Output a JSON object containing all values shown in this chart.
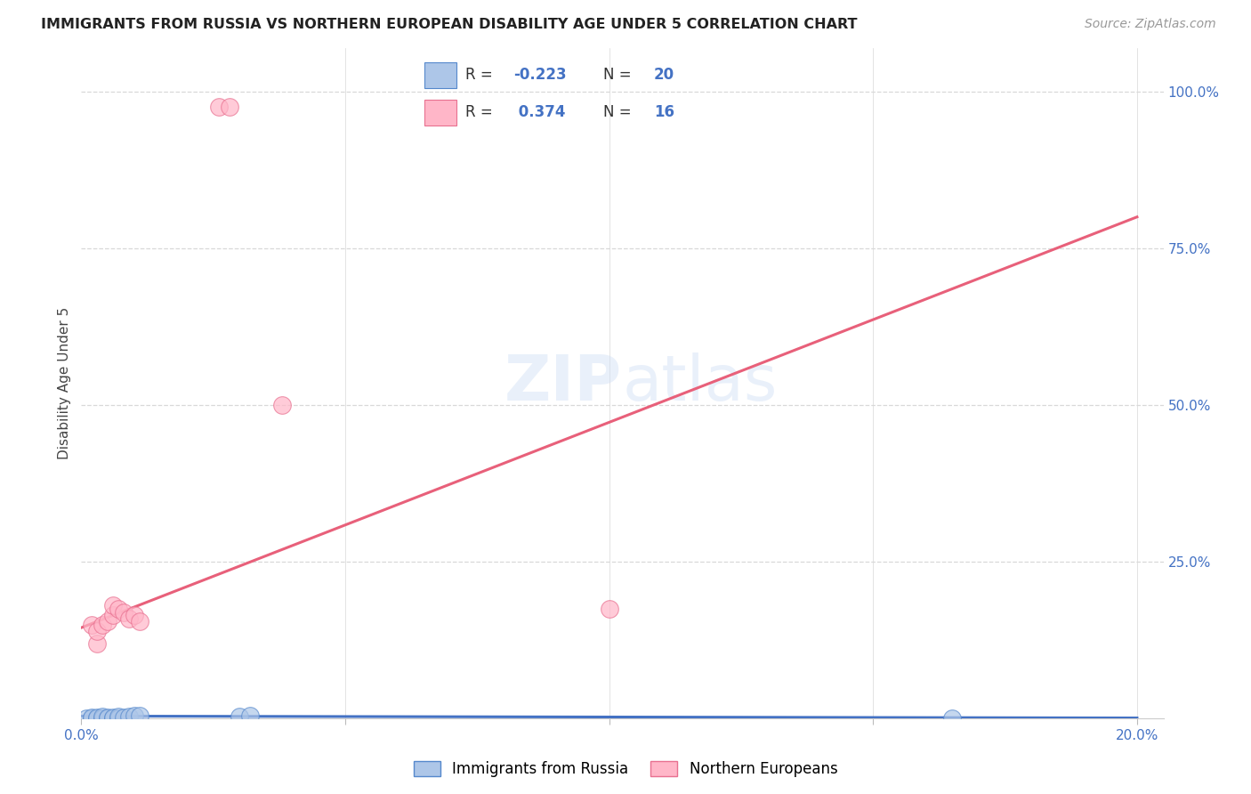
{
  "title": "IMMIGRANTS FROM RUSSIA VS NORTHERN EUROPEAN DISABILITY AGE UNDER 5 CORRELATION CHART",
  "source": "Source: ZipAtlas.com",
  "ylabel": "Disability Age Under 5",
  "scatter_color_russia": "#adc6e8",
  "scatter_edge_russia": "#5588cc",
  "scatter_color_northern": "#ffb6c8",
  "scatter_edge_northern": "#e87090",
  "line_color_russia": "#4472c4",
  "line_color_northern": "#e8607a",
  "russia_x": [
    0.001,
    0.002,
    0.002,
    0.003,
    0.003,
    0.004,
    0.004,
    0.005,
    0.005,
    0.006,
    0.006,
    0.007,
    0.007,
    0.008,
    0.009,
    0.01,
    0.011,
    0.03,
    0.032,
    0.165
  ],
  "russia_y": [
    0.001,
    0.001,
    0.002,
    0.001,
    0.002,
    0.001,
    0.003,
    0.001,
    0.002,
    0.001,
    0.002,
    0.001,
    0.003,
    0.002,
    0.003,
    0.004,
    0.004,
    0.003,
    0.004,
    0.001
  ],
  "northern_x": [
    0.002,
    0.003,
    0.003,
    0.004,
    0.005,
    0.006,
    0.006,
    0.007,
    0.008,
    0.009,
    0.01,
    0.011,
    0.026,
    0.028,
    0.1,
    0.038
  ],
  "northern_y": [
    0.15,
    0.12,
    0.14,
    0.15,
    0.155,
    0.165,
    0.18,
    0.175,
    0.17,
    0.16,
    0.165,
    0.155,
    0.975,
    0.975,
    0.175,
    0.5
  ],
  "russia_trend_x": [
    0.0,
    0.2
  ],
  "russia_trend_y": [
    0.004,
    0.001
  ],
  "northern_trend_x": [
    0.0,
    0.2
  ],
  "northern_trend_y": [
    0.145,
    0.8
  ],
  "xlim": [
    0.0,
    0.205
  ],
  "ylim": [
    0.0,
    1.07
  ],
  "yticks": [
    0.25,
    0.5,
    0.75,
    1.0
  ],
  "ytick_labels": [
    "25.0%",
    "50.0%",
    "75.0%",
    "100.0%"
  ],
  "watermark": "ZIPatlas",
  "bg_color": "#ffffff",
  "grid_color": "#d8d8d8",
  "legend_russia_R": "-0.223",
  "legend_russia_N": "20",
  "legend_northern_R": "0.374",
  "legend_northern_N": "16",
  "legend_bottom": [
    "Immigrants from Russia",
    "Northern Europeans"
  ]
}
